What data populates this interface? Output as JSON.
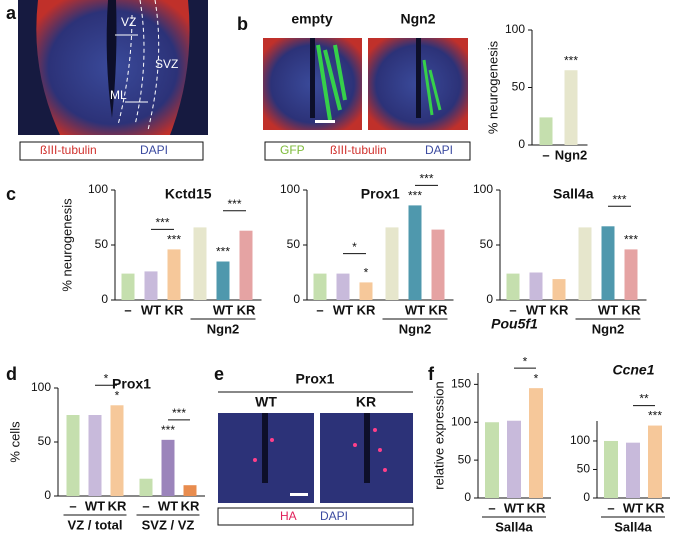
{
  "panels": {
    "a": {
      "letter": "a",
      "labels": [
        "VZ",
        "SVZ",
        "ML"
      ],
      "legend": [
        "ßIII-tubulin",
        "DAPI"
      ]
    },
    "b": {
      "letter": "b",
      "columns": [
        "empty",
        "Ngn2"
      ],
      "legend": [
        "GFP",
        "ßIII-tubulin",
        "DAPI"
      ]
    },
    "c": {
      "letter": "c"
    },
    "d": {
      "letter": "d"
    },
    "e": {
      "letter": "e",
      "title": "Prox1",
      "columns": [
        "WT",
        "KR"
      ],
      "legend": [
        "HA",
        "DAPI"
      ]
    },
    "f": {
      "letter": "f"
    }
  },
  "chart_data": [
    {
      "type": "bar",
      "ylabel": "% neurogenesis",
      "categories": [
        "–",
        "Ngn2"
      ],
      "values": [
        24,
        65
      ],
      "colors": [
        "#c5dfae",
        "#e6e6cc"
      ],
      "ylim": [
        0,
        100
      ],
      "yticks": [
        0,
        50,
        100
      ],
      "annotations": [
        {
          "text": "***",
          "bar": 1
        }
      ]
    },
    {
      "type": "bar",
      "title": "Kctd15",
      "ylabel": "% neurogenesis",
      "categories": [
        "–",
        "WT",
        "KR",
        null,
        "WT",
        "KR"
      ],
      "values": [
        24,
        26,
        46,
        66,
        35,
        63
      ],
      "colors": [
        "#c5dfae",
        "#c8badb",
        "#f6c89a",
        "#e6e6cc",
        "#4f98ad",
        "#e5a3a3"
      ],
      "ylim": [
        0,
        100
      ],
      "yticks": [
        0,
        50,
        100
      ],
      "groups": [
        {
          "label": "Ngn2",
          "from": 3,
          "to": 5
        }
      ],
      "annotations": [
        {
          "text": "***",
          "bar": 2
        },
        {
          "text": "***",
          "bar": 4
        },
        {
          "text": "***",
          "from": 1,
          "to": 2
        },
        {
          "text": "***",
          "from": 4,
          "to": 5
        }
      ]
    },
    {
      "type": "bar",
      "title": "Prox1",
      "categories": [
        "–",
        "WT",
        "KR",
        null,
        "WT",
        "KR"
      ],
      "values": [
        24,
        24,
        16,
        66,
        86,
        64
      ],
      "colors": [
        "#c5dfae",
        "#c8badb",
        "#f6c89a",
        "#e6e6cc",
        "#4f98ad",
        "#e5a3a3"
      ],
      "ylim": [
        0,
        100
      ],
      "yticks": [
        0,
        50,
        100
      ],
      "groups": [
        {
          "label": "Ngn2",
          "from": 3,
          "to": 5
        }
      ],
      "annotations": [
        {
          "text": "*",
          "bar": 2
        },
        {
          "text": "***",
          "bar": 4
        },
        {
          "text": "*",
          "from": 1,
          "to": 2
        },
        {
          "text": "***",
          "from": 4,
          "to": 5
        }
      ]
    },
    {
      "type": "bar",
      "title": "Sall4a",
      "categories": [
        "–",
        "WT",
        "KR",
        null,
        "WT",
        "KR"
      ],
      "values": [
        24,
        25,
        19,
        66,
        67,
        46
      ],
      "colors": [
        "#c5dfae",
        "#c8badb",
        "#f6c89a",
        "#e6e6cc",
        "#4f98ad",
        "#e5a3a3"
      ],
      "ylim": [
        0,
        100
      ],
      "yticks": [
        0,
        50,
        100
      ],
      "groups": [
        {
          "label": "Ngn2",
          "from": 3,
          "to": 5
        }
      ],
      "annotations": [
        {
          "text": "***",
          "bar": 5
        },
        {
          "text": "***",
          "from": 4,
          "to": 5
        }
      ]
    },
    {
      "type": "bar",
      "title": "Prox1",
      "ylabel": "% cells",
      "categories": [
        "–",
        "WT",
        "KR",
        "–",
        "WT",
        "KR"
      ],
      "values": [
        75,
        75,
        84,
        16,
        52,
        10
      ],
      "colors": [
        "#c5dfae",
        "#c8badb",
        "#f6c89a",
        "#c5dfae",
        "#9b84bb",
        "#e88c4e"
      ],
      "ylim": [
        0,
        100
      ],
      "yticks": [
        0,
        50,
        100
      ],
      "groups": [
        {
          "label": "VZ / total",
          "from": 0,
          "to": 2
        },
        {
          "label": "SVZ / VZ",
          "from": 3,
          "to": 5
        }
      ],
      "annotations": [
        {
          "text": "*",
          "bar": 2
        },
        {
          "text": "***",
          "bar": 4
        },
        {
          "text": "*",
          "from": 1,
          "to": 2
        },
        {
          "text": "***",
          "from": 4,
          "to": 5
        }
      ]
    },
    {
      "type": "bar",
      "title": "Pou5f1",
      "ylabel": "relative expression",
      "categories": [
        "–",
        "WT",
        "KR"
      ],
      "values": [
        100,
        102,
        145
      ],
      "colors": [
        "#c5dfae",
        "#c8badb",
        "#f6c89a"
      ],
      "ylim": [
        0,
        165
      ],
      "yticks": [
        0,
        50,
        100,
        150
      ],
      "groups": [
        {
          "label": "Sall4a",
          "from": 0,
          "to": 2
        }
      ],
      "annotations": [
        {
          "text": "*",
          "bar": 2
        },
        {
          "text": "*",
          "from": 1,
          "to": 2
        }
      ]
    },
    {
      "type": "bar",
      "title": "Ccne1",
      "categories": [
        "–",
        "WT",
        "KR"
      ],
      "values": [
        100,
        97,
        127
      ],
      "colors": [
        "#c5dfae",
        "#c8badb",
        "#f6c89a"
      ],
      "ylim": [
        0,
        135
      ],
      "yticks": [
        0,
        50,
        100
      ],
      "groups": [
        {
          "label": "Sall4a",
          "from": 0,
          "to": 2
        }
      ],
      "annotations": [
        {
          "text": "***",
          "bar": 2
        },
        {
          "text": "**",
          "from": 1,
          "to": 2
        }
      ]
    }
  ]
}
